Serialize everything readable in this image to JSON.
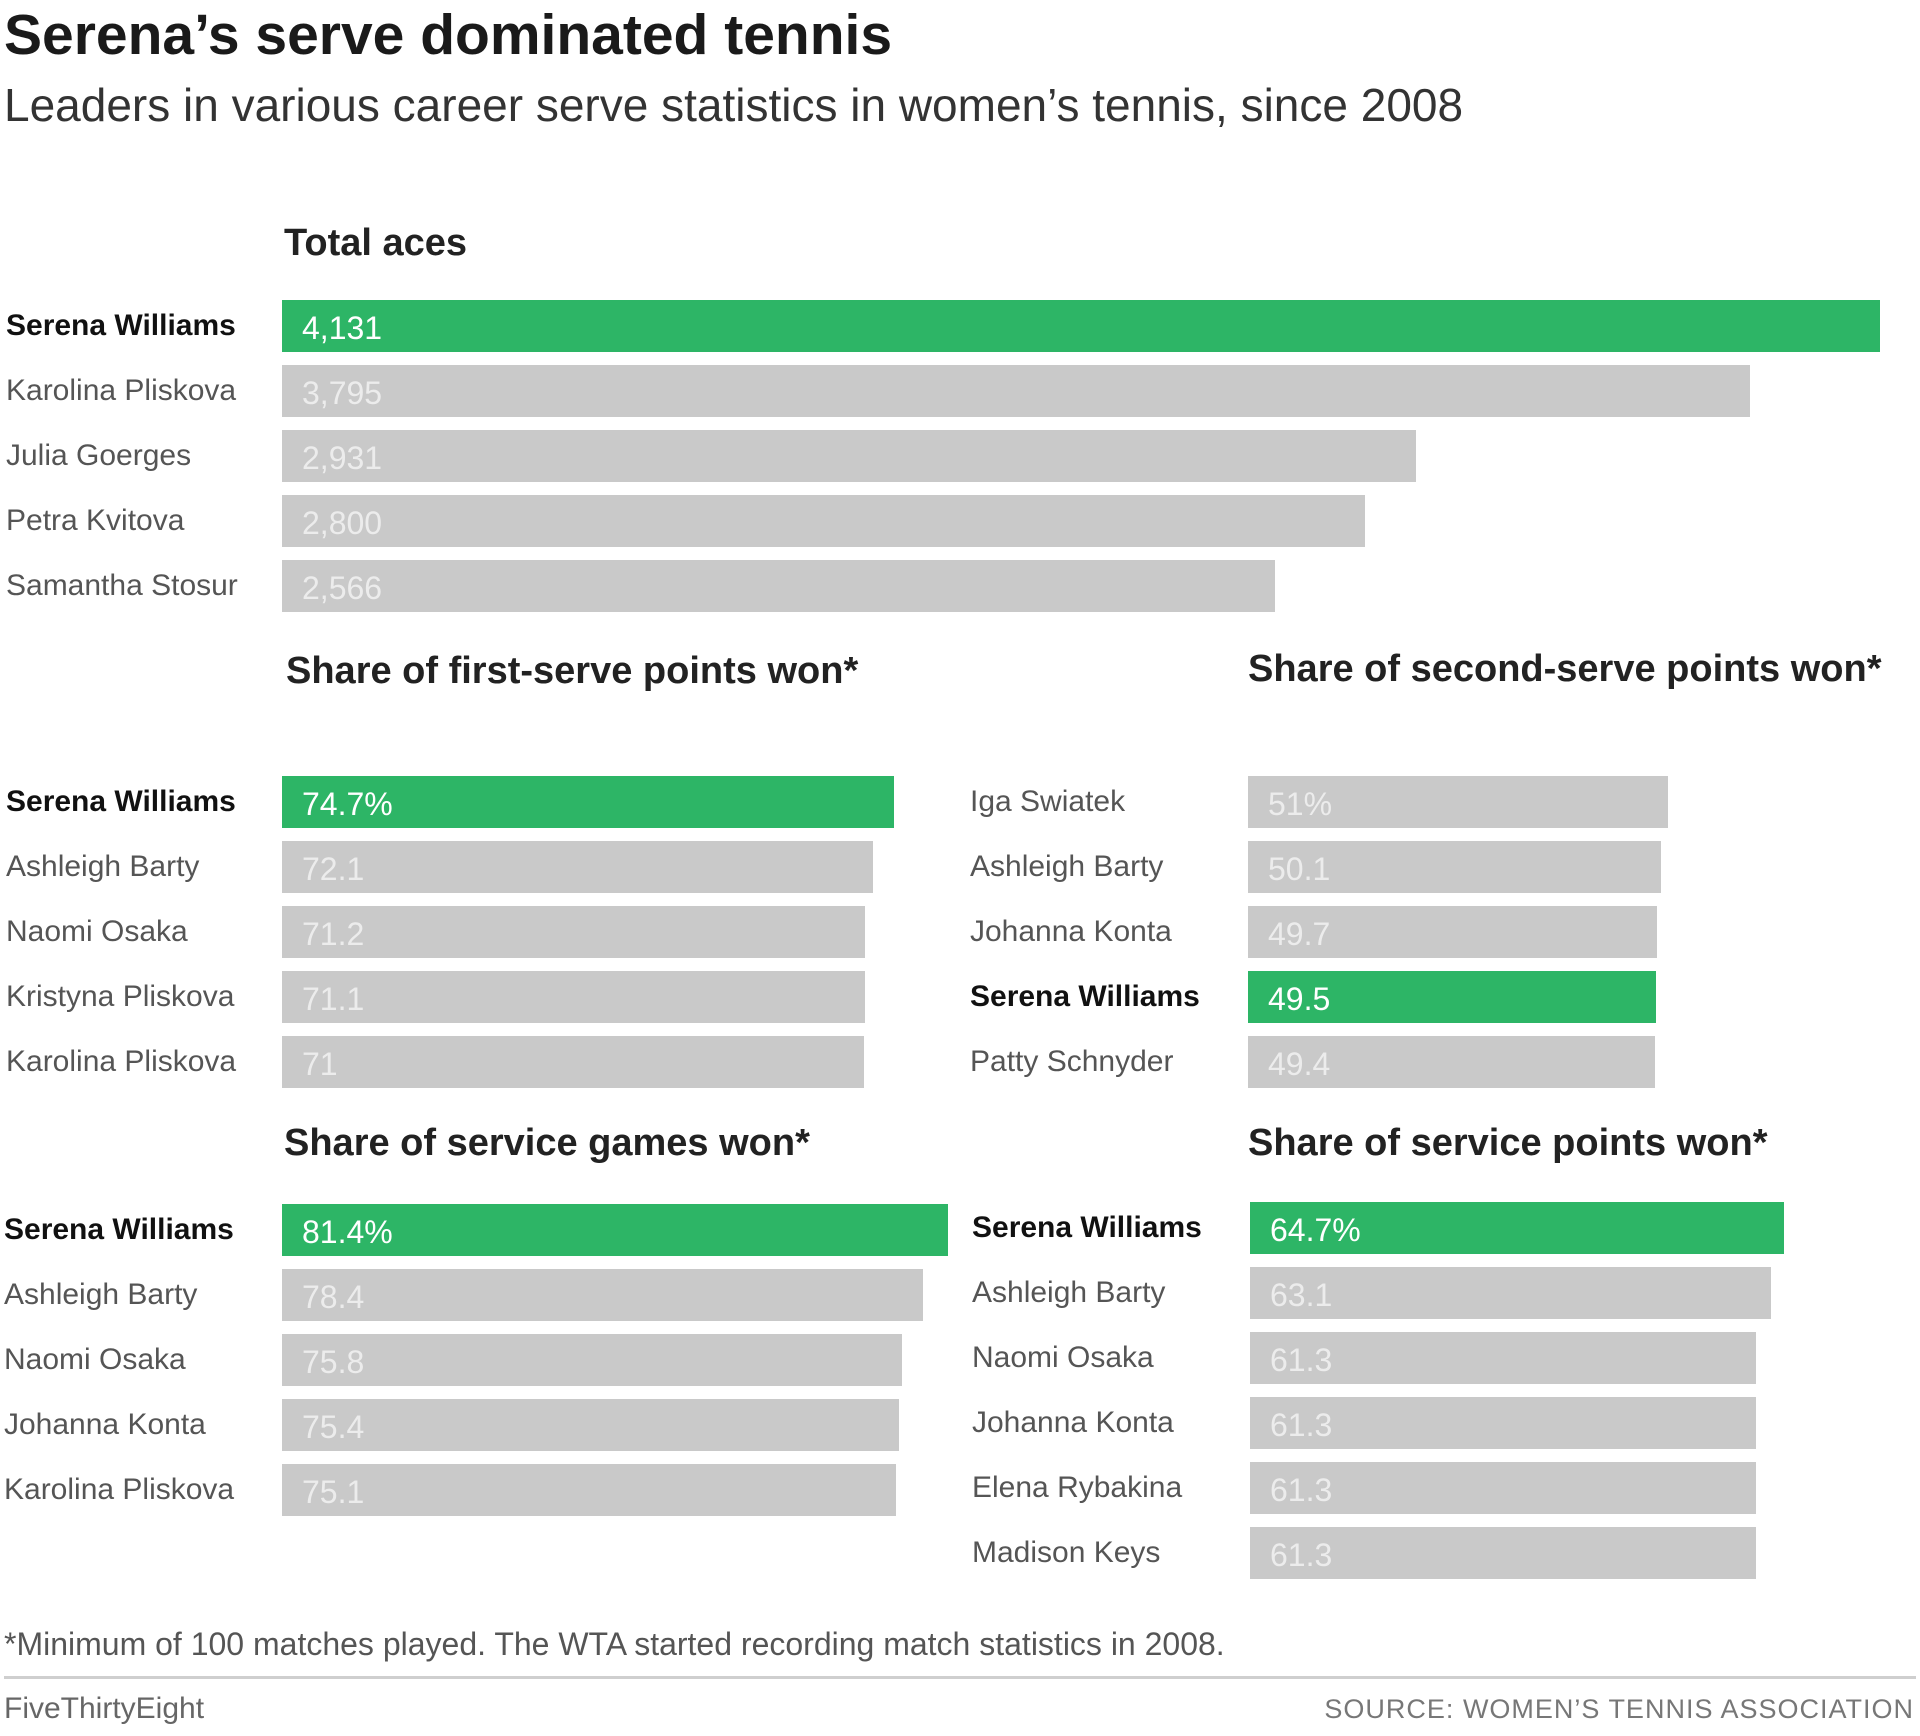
{
  "title": "Serena’s serve dominated tennis",
  "subtitle": "Leaders in various career serve statistics in women’s tennis, since 2008",
  "footnote": "*Minimum of 100 matches played. The WTA started recording match statistics in 2008.",
  "credit": "FiveThirtyEight",
  "source": "SOURCE: WOMEN’S TENNIS ASSOCIATION",
  "colors": {
    "highlight": "#2db566",
    "bar": "#c9c9c9"
  },
  "chart_data": [
    {
      "type": "bar",
      "title": "Total aces",
      "categories": [
        "Serena Williams",
        "Karolina Pliskova",
        "Julia Goerges",
        "Petra Kvitova",
        "Samantha Stosur"
      ],
      "values": [
        4131,
        3795,
        2931,
        2800,
        2566
      ],
      "value_labels": [
        "4,131",
        "3,795",
        "2,931",
        "2,800",
        "2,566"
      ],
      "highlight": "Serena Williams"
    },
    {
      "type": "bar",
      "title": "Share of first-serve points won*",
      "categories": [
        "Serena Williams",
        "Ashleigh Barty",
        "Naomi Osaka",
        "Kristyna Pliskova",
        "Karolina Pliskova"
      ],
      "values": [
        74.7,
        72.1,
        71.2,
        71.1,
        71
      ],
      "value_labels": [
        "74.7%",
        "72.1",
        "71.2",
        "71.1",
        "71"
      ],
      "highlight": "Serena Williams"
    },
    {
      "type": "bar",
      "title": "Share of second-serve points won*",
      "categories": [
        "Iga Swiatek",
        "Ashleigh Barty",
        "Johanna Konta",
        "Serena Williams",
        "Patty Schnyder"
      ],
      "values": [
        51,
        50.1,
        49.7,
        49.5,
        49.4
      ],
      "value_labels": [
        "51%",
        "50.1",
        "49.7",
        "49.5",
        "49.4"
      ],
      "highlight": "Serena Williams"
    },
    {
      "type": "bar",
      "title": "Share of service games won*",
      "categories": [
        "Serena Williams",
        "Ashleigh Barty",
        "Naomi Osaka",
        "Johanna Konta",
        "Karolina Pliskova"
      ],
      "values": [
        81.4,
        78.4,
        75.8,
        75.4,
        75.1
      ],
      "value_labels": [
        "81.4%",
        "78.4",
        "75.8",
        "75.4",
        "75.1"
      ],
      "highlight": "Serena Williams"
    },
    {
      "type": "bar",
      "title": "Share of service points won*",
      "categories": [
        "Serena Williams",
        "Ashleigh Barty",
        "Naomi Osaka",
        "Johanna Konta",
        "Elena Rybakina",
        "Madison Keys"
      ],
      "values": [
        64.7,
        63.1,
        61.3,
        61.3,
        61.3,
        61.3
      ],
      "value_labels": [
        "64.7%",
        "63.1",
        "61.3",
        "61.3",
        "61.3",
        "61.3"
      ],
      "highlight": "Serena Williams"
    }
  ]
}
